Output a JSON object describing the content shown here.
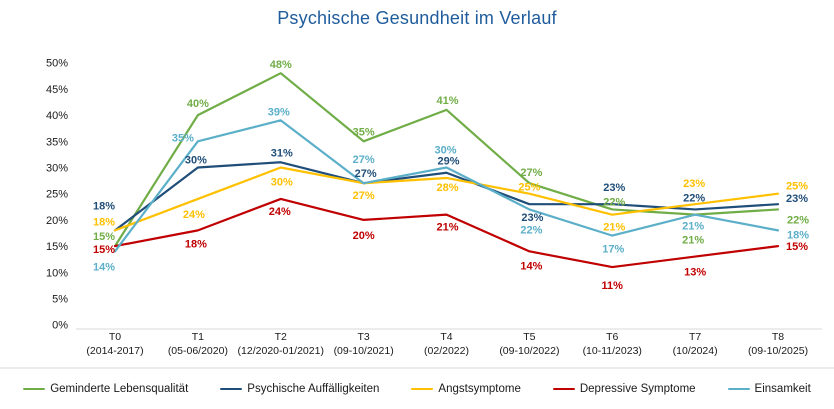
{
  "chart_data": {
    "type": "line",
    "title": "Psychische Gesundheit im Verlauf",
    "categories": [
      "T0",
      "T1",
      "T2",
      "T3",
      "T4",
      "T5",
      "T6",
      "T7",
      "T8"
    ],
    "category_sublabels": [
      "(2014-2017)",
      "(05-06/2020)",
      "(12/2020-01/2021)",
      "(09-10/2021)",
      "(02/2022)",
      "(09-10/2022)",
      "(10-11/2023)",
      "(10/2024)",
      "(09-10/2025)"
    ],
    "series": [
      {
        "name": "Geminderte Lebensqualität",
        "color": "#70AD47",
        "values": [
          15,
          40,
          48,
          35,
          41,
          27,
          22,
          21,
          22
        ]
      },
      {
        "name": "Psychische Auffälligkeiten",
        "color": "#1F4E79",
        "values": [
          18,
          30,
          31,
          27,
          29,
          23,
          23,
          22,
          23
        ]
      },
      {
        "name": "Angstsymptome",
        "color": "#FFC000",
        "values": [
          18,
          24,
          30,
          27,
          28,
          25,
          21,
          23,
          25
        ]
      },
      {
        "name": "Depressive Symptome",
        "color": "#C00000",
        "values": [
          15,
          18,
          24,
          20,
          21,
          14,
          11,
          13,
          15
        ]
      },
      {
        "name": "Einsamkeit",
        "color": "#5BAFC9",
        "values": [
          14,
          35,
          39,
          27,
          30,
          22,
          17,
          21,
          18
        ]
      }
    ],
    "ylim": [
      0,
      50
    ],
    "ytick_step": 5,
    "ytick_labels": [
      "0%",
      "5%",
      "10%",
      "15%",
      "20%",
      "25%",
      "30%",
      "35%",
      "40%",
      "45%",
      "50%"
    ],
    "label_format": "percent",
    "grid": false,
    "legend_position": "bottom"
  },
  "colors": {
    "title": "#1F5C9C",
    "axis_text": "#1a1a1a",
    "separator": "#d9d9d9"
  }
}
